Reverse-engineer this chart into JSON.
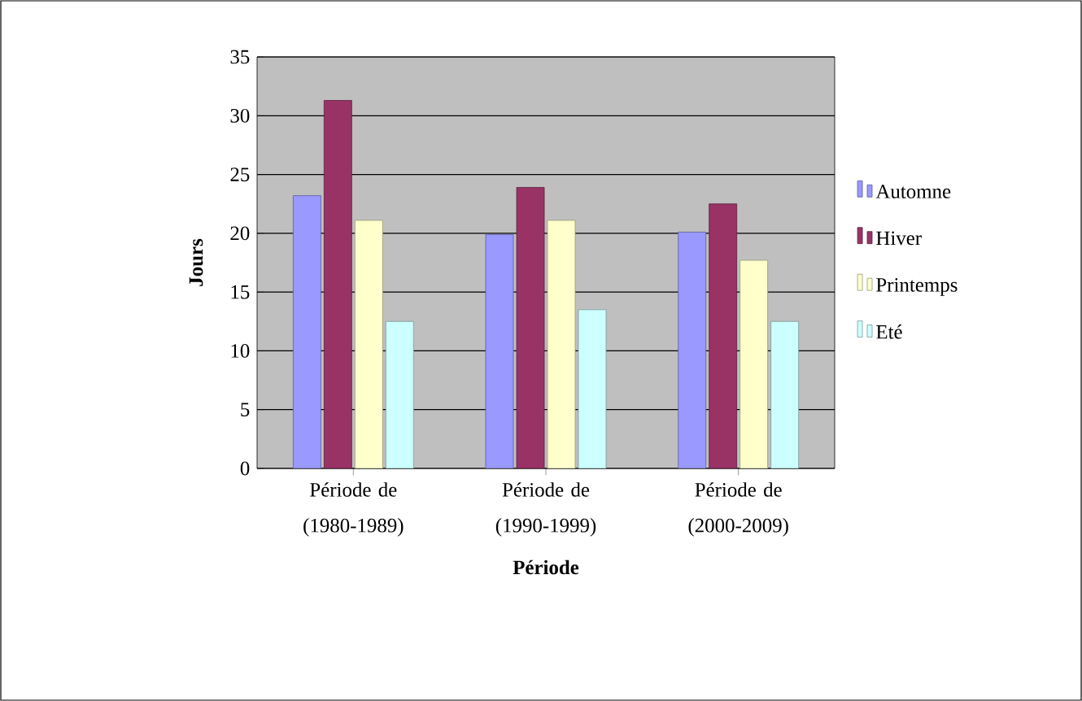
{
  "chart_data": {
    "type": "bar",
    "xlabel": "Période",
    "ylabel": "Jours",
    "categories": [
      "Période de (1980-1989)",
      "Période de (1990-1999)",
      "Période de (2000-2009)"
    ],
    "series": [
      {
        "name": "Automne",
        "color": "#9999ff",
        "values": [
          23.2,
          19.9,
          20.1
        ]
      },
      {
        "name": "Hiver",
        "color": "#993366",
        "values": [
          31.3,
          23.9,
          22.5
        ]
      },
      {
        "name": "Printemps",
        "color": "#ffffcc",
        "values": [
          21.1,
          21.1,
          17.7
        ]
      },
      {
        "name": "Eté",
        "color": "#ccffff",
        "values": [
          12.5,
          13.5,
          12.5
        ]
      }
    ],
    "ylim": [
      0,
      35
    ],
    "yticks": [
      0,
      5,
      10,
      15,
      20,
      25,
      30,
      35
    ],
    "grid": "y",
    "legend": "right"
  }
}
